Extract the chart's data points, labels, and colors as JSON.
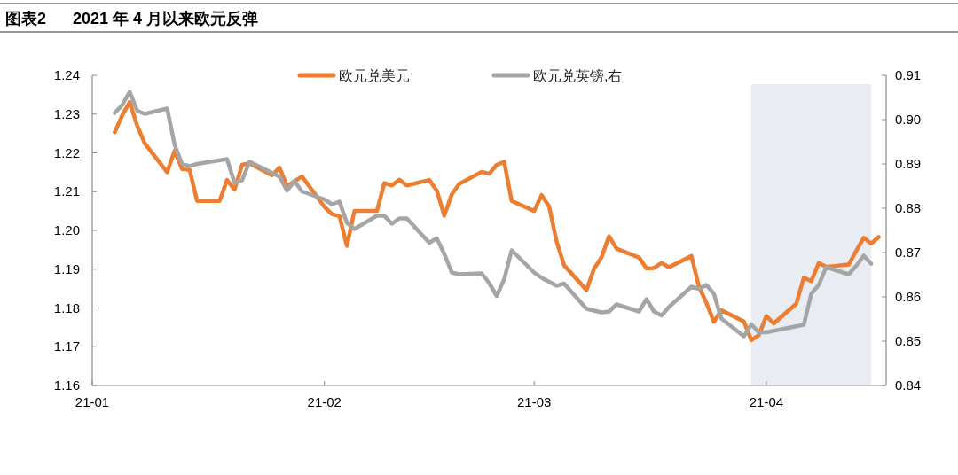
{
  "chart_data": {
    "type": "line",
    "title": "图表2      2021 年 4 月以来欧元反弹",
    "x": [
      "2021-01-04",
      "2021-01-05",
      "2021-01-06",
      "2021-01-07",
      "2021-01-08",
      "2021-01-11",
      "2021-01-12",
      "2021-01-13",
      "2021-01-14",
      "2021-01-15",
      "2021-01-18",
      "2021-01-19",
      "2021-01-20",
      "2021-01-21",
      "2021-01-22",
      "2021-01-25",
      "2021-01-26",
      "2021-01-27",
      "2021-01-29",
      "2021-02-01",
      "2021-02-02",
      "2021-02-03",
      "2021-02-04",
      "2021-02-05",
      "2021-02-08",
      "2021-02-09",
      "2021-02-10",
      "2021-02-11",
      "2021-02-12",
      "2021-02-15",
      "2021-02-16",
      "2021-02-17",
      "2021-02-18",
      "2021-02-19",
      "2021-02-22",
      "2021-02-23",
      "2021-02-24",
      "2021-02-25",
      "2021-02-26",
      "2021-03-01",
      "2021-03-02",
      "2021-03-03",
      "2021-03-04",
      "2021-03-05",
      "2021-03-08",
      "2021-03-09",
      "2021-03-10",
      "2021-03-11",
      "2021-03-12",
      "2021-03-15",
      "2021-03-16",
      "2021-03-17",
      "2021-03-18",
      "2021-03-19",
      "2021-03-22",
      "2021-03-23",
      "2021-03-24",
      "2021-03-25",
      "2021-03-26",
      "2021-03-29",
      "2021-03-30",
      "2021-03-31",
      "2021-04-01",
      "2021-04-02",
      "2021-04-05",
      "2021-04-06",
      "2021-04-07",
      "2021-04-08",
      "2021-04-09",
      "2021-04-12",
      "2021-04-13",
      "2021-04-14",
      "2021-04-15",
      "2021-04-16"
    ],
    "series": [
      {
        "name": "欧元兑美元",
        "color": "#ed7d31",
        "values": [
          1.2253,
          1.2297,
          1.2331,
          1.227,
          1.2225,
          1.215,
          1.2206,
          1.2158,
          1.2156,
          1.2076,
          1.2076,
          1.213,
          1.2105,
          1.2169,
          1.2173,
          1.2142,
          1.2162,
          1.2114,
          1.2139,
          1.2061,
          1.2042,
          1.2037,
          1.196,
          1.205,
          1.205,
          1.2122,
          1.2116,
          1.2131,
          1.2116,
          1.213,
          1.2103,
          1.2038,
          1.2093,
          1.212,
          1.2151,
          1.2146,
          1.2169,
          1.2177,
          1.2076,
          1.205,
          1.2091,
          1.2062,
          1.1971,
          1.191,
          1.1846,
          1.1901,
          1.1931,
          1.1985,
          1.1953,
          1.193,
          1.1902,
          1.1903,
          1.1916,
          1.1905,
          1.1934,
          1.1855,
          1.1813,
          1.1764,
          1.1794,
          1.1765,
          1.1717,
          1.173,
          1.1779,
          1.176,
          1.1811,
          1.1878,
          1.1869,
          1.1916,
          1.1906,
          1.1912,
          1.1947,
          1.1981,
          1.1966,
          1.1983
        ]
      },
      {
        "name": "欧元兑英镑,右",
        "color": "#a5a5a5",
        "axis": "y2",
        "x": [
          "2021-01-04",
          "2021-01-05",
          "2021-01-06",
          "2021-01-07",
          "2021-01-08",
          "2021-01-11",
          "2021-01-12",
          "2021-01-13",
          "2021-01-14",
          "2021-01-15",
          "2021-01-19",
          "2021-01-20",
          "2021-01-21",
          "2021-01-22",
          "2021-01-25",
          "2021-01-26",
          "2021-01-27",
          "2021-01-28",
          "2021-01-29",
          "2021-02-01",
          "2021-02-02",
          "2021-02-03",
          "2021-02-04",
          "2021-02-05",
          "2021-02-08",
          "2021-02-09",
          "2021-02-10",
          "2021-02-11",
          "2021-02-12",
          "2021-02-15",
          "2021-02-16",
          "2021-02-17",
          "2021-02-18",
          "2021-02-19",
          "2021-02-22",
          "2021-02-23",
          "2021-02-24",
          "2021-02-25",
          "2021-02-26",
          "2021-03-01",
          "2021-03-02",
          "2021-03-04",
          "2021-03-05",
          "2021-03-08",
          "2021-03-10",
          "2021-03-11",
          "2021-03-12",
          "2021-03-15",
          "2021-03-16",
          "2021-03-17",
          "2021-03-18",
          "2021-03-19",
          "2021-03-22",
          "2021-03-23",
          "2021-03-24",
          "2021-03-25",
          "2021-03-26",
          "2021-03-29",
          "2021-03-30",
          "2021-03-31",
          "2021-04-01",
          "2021-04-06",
          "2021-04-07",
          "2021-04-08",
          "2021-04-09",
          "2021-04-12",
          "2021-04-13",
          "2021-04-14",
          "2021-04-15"
        ],
        "values": [
          0.9015,
          0.9033,
          0.9063,
          0.902,
          0.9013,
          0.9025,
          0.8943,
          0.89,
          0.8895,
          0.89,
          0.8911,
          0.8857,
          0.8863,
          0.8905,
          0.888,
          0.8871,
          0.884,
          0.8861,
          0.8838,
          0.882,
          0.8809,
          0.8815,
          0.8767,
          0.8753,
          0.8783,
          0.8783,
          0.8765,
          0.8777,
          0.8777,
          0.8722,
          0.8732,
          0.8697,
          0.8655,
          0.8651,
          0.8653,
          0.8631,
          0.8602,
          0.864,
          0.8705,
          0.8655,
          0.8643,
          0.8625,
          0.863,
          0.8573,
          0.8565,
          0.8567,
          0.8583,
          0.8567,
          0.8595,
          0.8567,
          0.8558,
          0.8577,
          0.8623,
          0.8618,
          0.8627,
          0.8607,
          0.8551,
          0.8511,
          0.8538,
          0.852,
          0.852,
          0.8537,
          0.8607,
          0.8627,
          0.8667,
          0.8651,
          0.867,
          0.8693,
          0.8675
        ]
      }
    ],
    "xlim": [
      "2021-01-01",
      "2021-04-17"
    ],
    "xticks": [
      {
        "value": "2021-01-01",
        "label": "21-01"
      },
      {
        "value": "2021-02-01",
        "label": "21-02"
      },
      {
        "value": "2021-03-01",
        "label": "21-03"
      },
      {
        "value": "2021-04-01",
        "label": "21-04"
      }
    ],
    "ylim": [
      1.16,
      1.24
    ],
    "yticks": [
      1.16,
      1.17,
      1.18,
      1.19,
      {
        "value": 1.2,
        "label": "1.20"
      },
      1.21,
      1.22,
      1.23,
      1.24
    ],
    "y2lim": [
      0.84,
      0.91
    ],
    "y2ticks": [
      0.84,
      0.85,
      0.86,
      0.87,
      0.88,
      0.89,
      {
        "value": 0.9,
        "label": "0.90"
      },
      0.91
    ],
    "bands": [
      {
        "axis": "x",
        "from": "2021-03-30",
        "to": "2021-04-15",
        "color": "#e9edf3"
      }
    ],
    "legend": "top",
    "grid": false,
    "marker": "none",
    "line_style": "solid"
  }
}
